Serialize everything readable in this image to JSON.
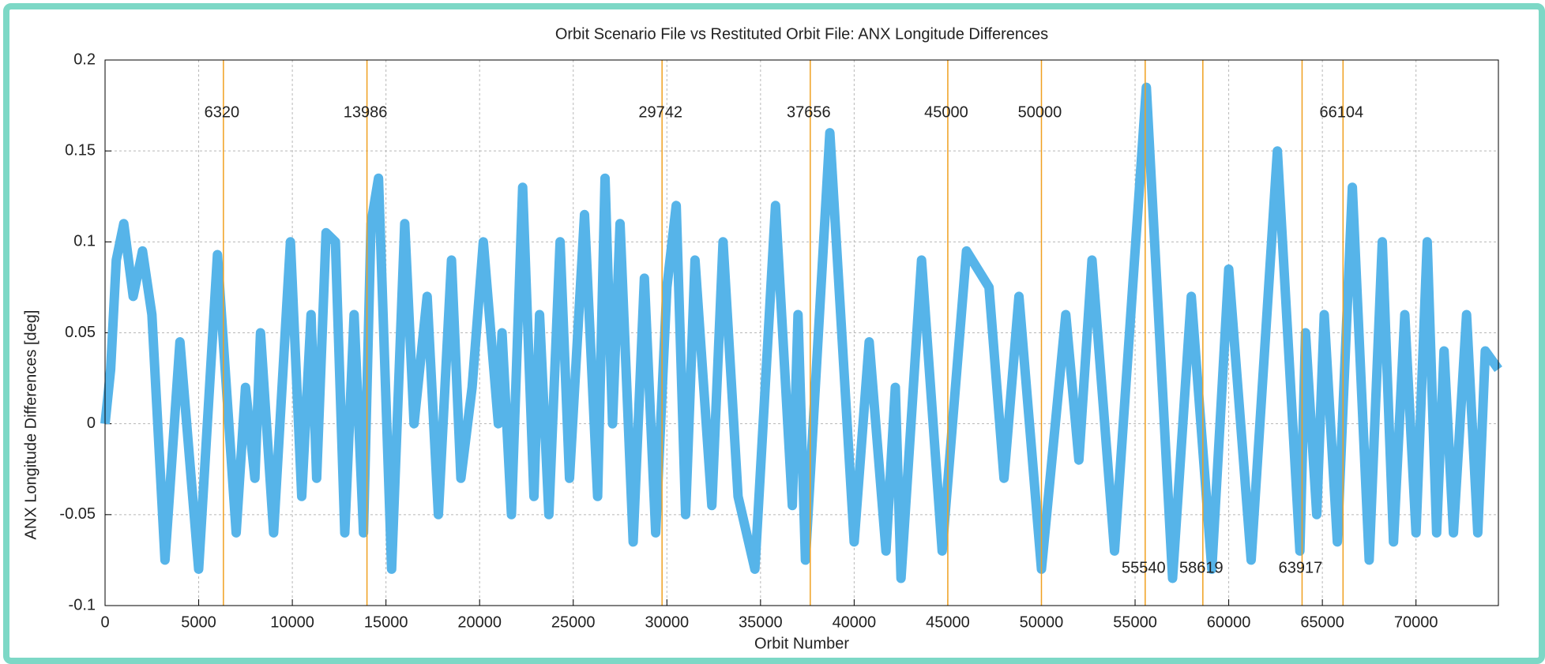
{
  "chart_data": {
    "type": "line",
    "title": "Orbit Scenario File vs Restituted Orbit File: ANX Longitude Differences",
    "x_label": "Orbit Number",
    "y_label": "ANX Longitude Differences [deg]",
    "x": [
      0,
      300,
      600,
      1000,
      1500,
      2000,
      2500,
      3200,
      4000,
      5000,
      6000,
      7000,
      7500,
      8000,
      8300,
      9000,
      9900,
      10500,
      11000,
      11300,
      11800,
      12300,
      12800,
      13300,
      13800,
      14200,
      14600,
      15300,
      16000,
      16500,
      17200,
      17800,
      18500,
      19000,
      19600,
      20200,
      21000,
      21200,
      21700,
      22300,
      22900,
      23200,
      23700,
      24300,
      24800,
      25600,
      26300,
      26700,
      27100,
      27500,
      28200,
      28800,
      29400,
      30000,
      30500,
      31000,
      31500,
      32400,
      33000,
      33800,
      34700,
      35800,
      36700,
      37000,
      37400,
      38700,
      40000,
      40800,
      41700,
      42200,
      42500,
      43600,
      44700,
      46000,
      47200,
      48000,
      48800,
      50000,
      51300,
      52000,
      52700,
      53900,
      55600,
      57000,
      58000,
      59100,
      60000,
      61200,
      62600,
      63800,
      64100,
      64700,
      65100,
      65800,
      66600,
      67500,
      68200,
      68800,
      69400,
      70000,
      70600,
      71100,
      71500,
      72000,
      72700,
      73300,
      73700,
      74400
    ],
    "series": [
      {
        "name": "ANX Longitude Differences",
        "color": "#56b4e9",
        "values": [
          0,
          0.03,
          0.09,
          0.11,
          0.07,
          0.095,
          0.06,
          -0.075,
          0.045,
          -0.08,
          0.093,
          -0.06,
          0.02,
          -0.03,
          0.05,
          -0.06,
          0.1,
          -0.04,
          0.06,
          -0.03,
          0.105,
          0.1,
          -0.06,
          0.06,
          -0.06,
          0.11,
          0.135,
          -0.08,
          0.11,
          0,
          0.07,
          -0.05,
          0.09,
          -0.03,
          0.02,
          0.1,
          0,
          0.05,
          -0.05,
          0.13,
          -0.04,
          0.06,
          -0.05,
          0.1,
          -0.03,
          0.115,
          -0.04,
          0.135,
          0,
          0.11,
          -0.065,
          0.08,
          -0.06,
          0.075,
          0.12,
          -0.05,
          0.09,
          -0.045,
          0.1,
          -0.04,
          -0.08,
          0.12,
          -0.045,
          0.06,
          -0.075,
          0.16,
          -0.065,
          0.045,
          -0.07,
          0.02,
          -0.085,
          0.09,
          -0.07,
          0.095,
          0.075,
          -0.03,
          0.07,
          -0.08,
          0.06,
          -0.02,
          0.09,
          -0.07,
          0.185,
          -0.085,
          0.07,
          -0.08,
          0.085,
          -0.075,
          0.15,
          -0.07,
          0.05,
          -0.05,
          0.06,
          -0.065,
          0.13,
          -0.075,
          0.1,
          -0.065,
          0.06,
          -0.06,
          0.1,
          -0.06,
          0.04,
          -0.06,
          0.06,
          -0.06,
          0.04,
          0.03
        ]
      }
    ],
    "vlines": {
      "color": "#f0a020",
      "values": [
        6320,
        13986,
        29742,
        37656,
        45000,
        50000,
        55540,
        58619,
        63917,
        66104
      ]
    },
    "xlim": [
      0,
      74400
    ],
    "ylim": [
      -0.1,
      0.2
    ],
    "xticks": [
      0,
      5000,
      10000,
      15000,
      20000,
      25000,
      30000,
      35000,
      40000,
      45000,
      50000,
      55000,
      60000,
      65000,
      70000
    ],
    "yticks": [
      -0.1,
      -0.05,
      0,
      0.05,
      0.1,
      0.15,
      0.2
    ],
    "grid": true
  }
}
